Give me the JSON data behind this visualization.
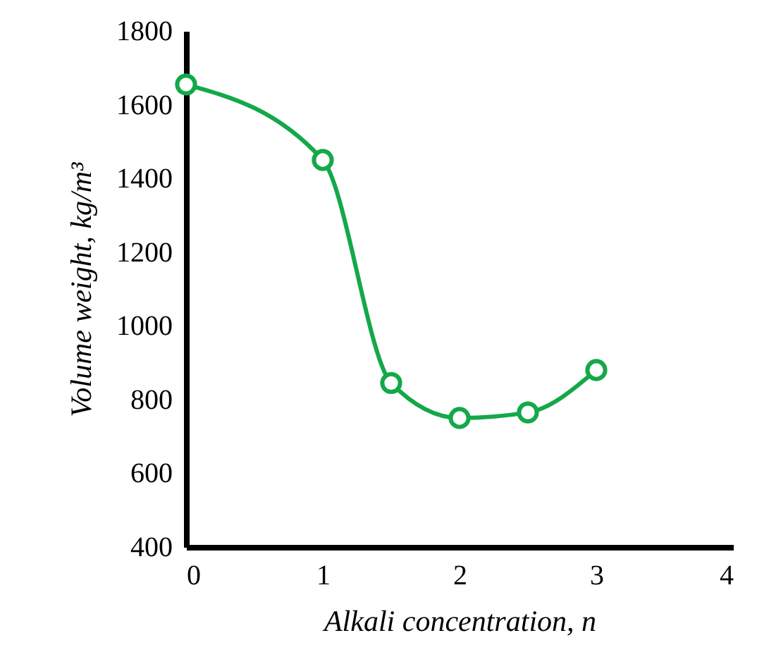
{
  "chart_data": {
    "type": "line",
    "xlabel": "Alkali concentration, n",
    "ylabel": "Volume weight, kg/m³",
    "x": [
      0,
      1,
      1.5,
      2,
      2.5,
      3
    ],
    "series": [
      {
        "color": "#14a84a",
        "values": [
          1655,
          1450,
          845,
          750,
          765,
          880
        ]
      }
    ],
    "xlim": [
      0,
      4
    ],
    "xticks": [
      0,
      1,
      2,
      3,
      4
    ],
    "ylim": [
      400,
      1800
    ],
    "yticks": [
      400,
      600,
      800,
      1000,
      1200,
      1400,
      1600,
      1800
    ],
    "grid": false,
    "marker": "circle",
    "line_style": "solid"
  }
}
